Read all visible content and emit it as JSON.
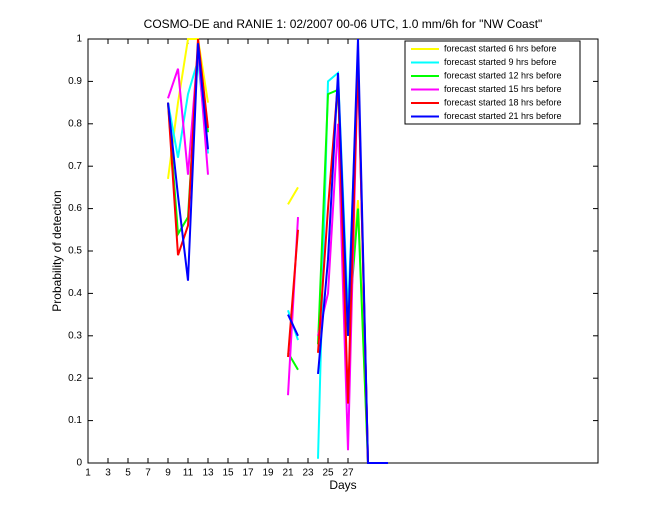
{
  "chart_data": {
    "type": "line",
    "title": "COSMO-DE and RANIE 1: 02/2007 00-06 UTC, 1.0 mm/6h for \"NW Coast\"",
    "x_label": "Days",
    "y_label": "Probability of detection",
    "x": [
      1,
      2,
      3,
      4,
      5,
      6,
      7,
      8,
      9,
      10,
      11,
      12,
      13,
      14,
      15,
      16,
      17,
      18,
      19,
      20,
      21,
      22,
      23,
      24,
      25,
      26,
      27,
      28,
      29,
      30,
      31
    ],
    "series": [
      {
        "name": "forecast started 6 hrs before",
        "color": "#ffff00",
        "values": [
          null,
          null,
          null,
          null,
          null,
          null,
          null,
          null,
          0.67,
          0.85,
          1.0,
          1.0,
          0.85,
          null,
          null,
          null,
          null,
          null,
          null,
          null,
          0.61,
          0.65,
          null,
          null,
          null,
          null,
          0.33,
          0.62,
          0,
          null,
          null
        ]
      },
      {
        "name": "forecast started 9 hrs before",
        "color": "#00ffff",
        "values": [
          null,
          null,
          null,
          null,
          null,
          null,
          null,
          null,
          0.85,
          0.72,
          0.87,
          0.95,
          0.73,
          null,
          null,
          null,
          null,
          null,
          null,
          null,
          0.36,
          0.29,
          null,
          0.01,
          0.9,
          0.92,
          0.35,
          0.95,
          0,
          null,
          null
        ]
      },
      {
        "name": "forecast started 12 hrs before",
        "color": "#00ff00",
        "values": [
          null,
          null,
          null,
          null,
          null,
          null,
          null,
          null,
          0.85,
          0.54,
          0.58,
          0.97,
          0.78,
          null,
          null,
          null,
          null,
          null,
          null,
          null,
          0.26,
          0.22,
          null,
          0.28,
          0.87,
          0.88,
          0.3,
          0.6,
          0,
          null,
          null
        ]
      },
      {
        "name": "forecast started 15 hrs before",
        "color": "#ff00ff",
        "values": [
          null,
          null,
          null,
          null,
          null,
          null,
          null,
          null,
          0.86,
          0.93,
          0.68,
          0.98,
          0.68,
          null,
          null,
          null,
          null,
          null,
          null,
          null,
          0.16,
          0.58,
          null,
          0.3,
          0.4,
          0.8,
          0.03,
          0.95,
          0,
          null,
          null
        ]
      },
      {
        "name": "forecast started 18 hrs before",
        "color": "#ff0000",
        "values": [
          null,
          null,
          null,
          null,
          null,
          null,
          null,
          null,
          0.85,
          0.49,
          0.56,
          1.0,
          0.79,
          null,
          null,
          null,
          null,
          null,
          null,
          null,
          0.25,
          0.55,
          null,
          0.26,
          0.6,
          0.9,
          0.14,
          0.95,
          0,
          null,
          null
        ]
      },
      {
        "name": "forecast started 21 hrs before",
        "color": "#0000ff",
        "values": [
          null,
          null,
          null,
          null,
          null,
          null,
          null,
          null,
          0.85,
          0.63,
          0.43,
          0.99,
          0.74,
          null,
          null,
          null,
          null,
          null,
          null,
          null,
          0.35,
          0.3,
          null,
          0.21,
          0.48,
          0.92,
          0.3,
          1.0,
          0,
          0,
          0
        ]
      }
    ],
    "xlim": [
      1,
      52
    ],
    "xticks": [
      1,
      3,
      5,
      7,
      9,
      11,
      13,
      15,
      17,
      19,
      21,
      23,
      25,
      27
    ],
    "ylim": [
      0,
      1
    ],
    "yticks": [
      0,
      0.1,
      0.2,
      0.3,
      0.4,
      0.5,
      0.6,
      0.7,
      0.8,
      0.9,
      1
    ],
    "legend": "top-right"
  }
}
